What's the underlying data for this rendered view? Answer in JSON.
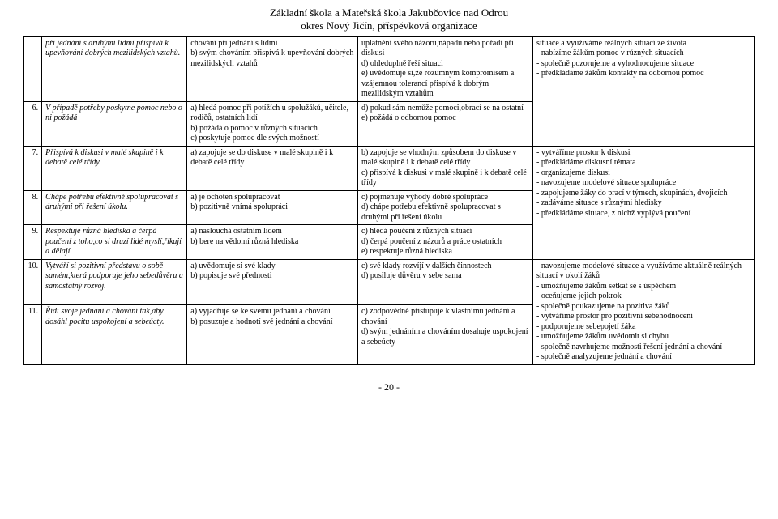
{
  "header": {
    "line1": "Základní škola a Mateřská škola Jakubčovice nad Odrou",
    "line2": "okres Nový Jičín, příspěvková organizace"
  },
  "rows": [
    {
      "num": "",
      "c1": "při jednání s druhými lidmi přispívá k upevňování dobrých mezilidských vztahů.",
      "c2": "chování při jednání s lidmi\nb) svým chováním přispívá k upevňování dobrých mezilidských vztahů",
      "c3": "uplatnění svého názoru,nápadu nebo pořadí při diskusi\nd) ohleduplně řeší situaci\ne)  uvědomuje si,že rozumným kompromisem a vzájemnou tolerancí přispívá k dobrým mezilidským vztahům",
      "c4": "situace a využíváme reálných situací ze života\n- nabízíme žákům pomoc v různých situacích\n- společně pozorujeme a vyhodnocujeme situace\n- předkládáme žákům kontakty na odbornou pomoc"
    },
    {
      "num": "6.",
      "c1": "V případě potřeby poskytne pomoc nebo o ni požádá",
      "c2": "a) hledá pomoc při potížích u spolužáků, učitele, rodičů, ostatních lidí\nb) požádá o pomoc v různých situacích\nc) poskytuje pomoc dle svých možností",
      "c3": "d) pokud sám nemůže pomoci,obrací se na ostatní\ne) požádá o odbornou pomoc",
      "c4": ""
    },
    {
      "num": "7.",
      "c1": "Přispívá k diskusi v malé skupině i k debatě celé třídy.",
      "c2": "a) zapojuje se do diskuse v malé skupině i k debatě celé třídy",
      "c3": "b) zapojuje se vhodným způsobem  do diskuse v malé skupině i k debatě celé třídy\nc) přispívá k diskusi v malé skupině i k debatě celé třídy",
      "c4": "- vytváříme prostor k diskusi\n- předkládáme diskusní témata\n- organizujeme diskusi\n- navozujeme modelové situace spolupráce\n- zapojujeme žáky do prací v týmech, skupinách, dvojicích\n- zadáváme situace s různými hledisky\n- předkládáme situace, z nichž vyplývá poučení"
    },
    {
      "num": "8.",
      "c1": "Chápe potřebu efektivně spolupracovat s druhými při řešení úkolu.",
      "c2": "a) je ochoten spolupracovat\nb) pozitivně vnímá spolupráci",
      "c3": "c) pojmenuje výhody dobré spolupráce\nd) chápe potřebu efektivně spolupracovat  s druhými při řešení úkolu",
      "c4": ""
    },
    {
      "num": "9.",
      "c1": "Respektuje různá hlediska a čerpá poučení z toho,co si druzí lidé myslí,říkají a dělají.",
      "c2": "a) naslouchá ostatním lidem\nb) bere na vědomí různá hlediska",
      "c3": "c) hledá poučení z různých situací\nd) čerpá poučení z názorů a práce ostatních\ne) respektuje různá hlediska",
      "c4": ""
    },
    {
      "num": "10.",
      "c1": "Vytváří si pozitivní představu o sobě samém,která podporuje jeho sebedůvěru a samostatný rozvoj.",
      "c2": "a) uvědomuje si své klady\nb) popisuje své přednosti",
      "c3": "c) své klady rozvíjí v dalších činnostech\nd) posiluje důvěru v sebe sama",
      "c4": "- navozujeme modelové situace a využíváme aktuálně reálných situací v okolí žáků\n- umožňujeme žákům setkat se s úspěchem\n- oceňujeme jejich pokrok\n- společně poukazujeme na pozitiva žáků\n- vytváříme prostor pro pozitivní sebehodnocení\n- podporujeme sebepojetí žáka\n- umožňujeme žákům uvědomit si chybu\n- společně navrhujeme možnosti řešení jednání a chování\n- společně analyzujeme jednání a chování"
    },
    {
      "num": "11.",
      "c1": "Řídí svoje jednání a chování tak,aby dosáhl pocitu uspokojení a sebeúcty.",
      "c2": "a) vyjadřuje se ke svému jednání a chování\nb)  posuzuje a hodnotí své jednání a chování",
      "c3": "c)  zodpovědně přistupuje k vlastnímu jednání a chování\nd) svým jednáním a chováním dosahuje uspokojení a sebeúcty",
      "c4": ""
    }
  ],
  "footer": "- 20 -"
}
